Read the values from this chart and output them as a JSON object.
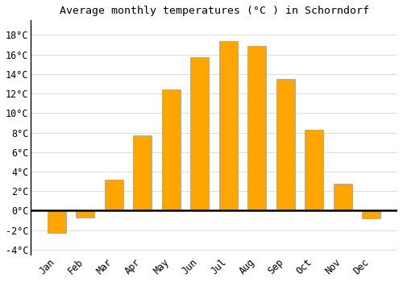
{
  "title": "Average monthly temperatures (°C ) in Schorndorf",
  "months": [
    "Jan",
    "Feb",
    "Mar",
    "Apr",
    "May",
    "Jun",
    "Jul",
    "Aug",
    "Sep",
    "Oct",
    "Nov",
    "Dec"
  ],
  "values": [
    -2.3,
    -0.7,
    3.2,
    7.7,
    12.4,
    15.7,
    17.4,
    16.9,
    13.5,
    8.3,
    2.8,
    -0.8
  ],
  "bar_color_pos": "#FFA500",
  "bar_color_neg": "#FFA500",
  "bar_edge_color": "#999999",
  "ylim": [
    -4.5,
    19.5
  ],
  "yticks": [
    -4,
    -2,
    0,
    2,
    4,
    6,
    8,
    10,
    12,
    14,
    16,
    18
  ],
  "ytick_labels": [
    "-4°C",
    "-2°C",
    "0°C",
    "2°C",
    "4°C",
    "6°C",
    "8°C",
    "10°C",
    "12°C",
    "14°C",
    "16°C",
    "18°C"
  ],
  "grid_color": "#dddddd",
  "background_color": "#ffffff",
  "zero_line_color": "#000000",
  "spine_color": "#000000",
  "title_fontsize": 9.5,
  "tick_fontsize": 8.5,
  "bar_width": 0.65
}
